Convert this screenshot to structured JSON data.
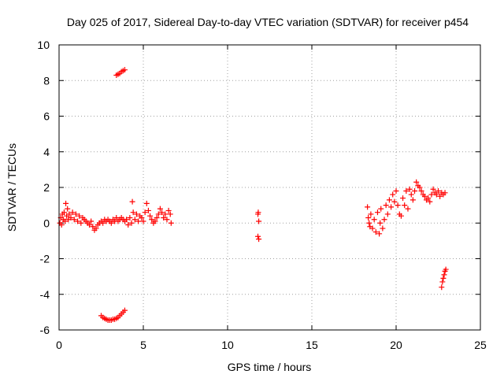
{
  "chart_data": {
    "type": "scatter",
    "title": "Day 025 of 2017, Sidereal Day-to-day VTEC variation (SDTVAR) for receiver p454",
    "xlabel": "GPS time / hours",
    "ylabel": "SDTVAR / TECUs",
    "xlim": [
      0,
      25
    ],
    "ylim": [
      -6,
      10
    ],
    "xticks": [
      0,
      5,
      10,
      15,
      20,
      25
    ],
    "xtick_labels": [
      "0",
      "5",
      "10",
      "15",
      "20",
      "25"
    ],
    "yticks": [
      -6,
      -4,
      -2,
      0,
      2,
      4,
      6,
      8,
      10
    ],
    "ytick_labels": [
      "-6",
      "-4",
      "-2",
      "0",
      "2",
      "4",
      "6",
      "8",
      "10"
    ],
    "grid": true,
    "marker": "plus",
    "marker_color": "#ff0000",
    "series": [
      {
        "name": "p454",
        "points": [
          [
            0.05,
            0.0
          ],
          [
            0.1,
            0.3
          ],
          [
            0.15,
            -0.1
          ],
          [
            0.2,
            0.5
          ],
          [
            0.25,
            0.2
          ],
          [
            0.3,
            0.6
          ],
          [
            0.35,
            0.1
          ],
          [
            0.4,
            1.1
          ],
          [
            0.45,
            0.4
          ],
          [
            0.5,
            0.8
          ],
          [
            0.55,
            0.2
          ],
          [
            0.6,
            0.5
          ],
          [
            0.7,
            0.3
          ],
          [
            0.8,
            0.6
          ],
          [
            0.9,
            0.2
          ],
          [
            1.0,
            0.5
          ],
          [
            1.1,
            0.1
          ],
          [
            1.2,
            0.4
          ],
          [
            1.3,
            0.0
          ],
          [
            1.4,
            0.3
          ],
          [
            1.5,
            0.2
          ],
          [
            1.6,
            0.1
          ],
          [
            1.7,
            0.0
          ],
          [
            1.8,
            -0.1
          ],
          [
            1.9,
            0.1
          ],
          [
            2.0,
            -0.2
          ],
          [
            2.1,
            -0.4
          ],
          [
            2.2,
            -0.3
          ],
          [
            2.3,
            -0.1
          ],
          [
            2.4,
            0.0
          ],
          [
            2.5,
            0.1
          ],
          [
            2.6,
            0.0
          ],
          [
            2.7,
            0.2
          ],
          [
            2.8,
            0.1
          ],
          [
            2.9,
            0.2
          ],
          [
            3.0,
            0.1
          ],
          [
            3.1,
            0.0
          ],
          [
            3.2,
            0.2
          ],
          [
            3.3,
            0.1
          ],
          [
            3.4,
            0.3
          ],
          [
            3.5,
            0.1
          ],
          [
            3.6,
            0.2
          ],
          [
            3.7,
            0.3
          ],
          [
            3.8,
            0.2
          ],
          [
            3.9,
            0.1
          ],
          [
            4.0,
            0.2
          ],
          [
            4.1,
            -0.1
          ],
          [
            4.2,
            0.3
          ],
          [
            4.3,
            0.0
          ],
          [
            4.35,
            1.2
          ],
          [
            4.4,
            0.6
          ],
          [
            4.5,
            0.2
          ],
          [
            4.6,
            0.5
          ],
          [
            4.7,
            0.1
          ],
          [
            4.8,
            0.4
          ],
          [
            4.9,
            0.3
          ],
          [
            5.0,
            0.1
          ],
          [
            5.1,
            0.6
          ],
          [
            5.2,
            1.1
          ],
          [
            5.3,
            0.7
          ],
          [
            5.4,
            0.4
          ],
          [
            5.5,
            0.2
          ],
          [
            5.6,
            0.0
          ],
          [
            5.7,
            0.1
          ],
          [
            5.8,
            0.3
          ],
          [
            5.9,
            0.5
          ],
          [
            6.0,
            0.8
          ],
          [
            6.1,
            0.6
          ],
          [
            6.2,
            0.3
          ],
          [
            6.3,
            0.5
          ],
          [
            6.4,
            0.2
          ],
          [
            6.5,
            0.7
          ],
          [
            6.6,
            0.5
          ],
          [
            6.65,
            0.0
          ],
          [
            3.4,
            8.3
          ],
          [
            3.5,
            8.35
          ],
          [
            3.6,
            8.4
          ],
          [
            3.7,
            8.5
          ],
          [
            3.8,
            8.55
          ],
          [
            3.9,
            8.6
          ],
          [
            2.5,
            -5.2
          ],
          [
            2.6,
            -5.3
          ],
          [
            2.7,
            -5.35
          ],
          [
            2.8,
            -5.4
          ],
          [
            2.9,
            -5.45
          ],
          [
            3.0,
            -5.45
          ],
          [
            3.1,
            -5.45
          ],
          [
            3.2,
            -5.4
          ],
          [
            3.3,
            -5.4
          ],
          [
            3.4,
            -5.35
          ],
          [
            3.5,
            -5.3
          ],
          [
            3.6,
            -5.2
          ],
          [
            3.7,
            -5.1
          ],
          [
            3.8,
            -5.0
          ],
          [
            3.9,
            -4.9
          ],
          [
            11.8,
            0.5
          ],
          [
            11.82,
            0.6
          ],
          [
            11.85,
            0.1
          ],
          [
            11.8,
            -0.75
          ],
          [
            11.85,
            -0.9
          ],
          [
            18.3,
            0.9
          ],
          [
            18.35,
            0.3
          ],
          [
            18.4,
            0.0
          ],
          [
            18.45,
            -0.2
          ],
          [
            18.5,
            0.5
          ],
          [
            18.6,
            -0.3
          ],
          [
            18.7,
            0.2
          ],
          [
            18.8,
            -0.5
          ],
          [
            18.9,
            0.6
          ],
          [
            19.0,
            -0.6
          ],
          [
            19.05,
            0.0
          ],
          [
            19.1,
            0.8
          ],
          [
            19.2,
            -0.3
          ],
          [
            19.3,
            0.2
          ],
          [
            19.4,
            1.0
          ],
          [
            19.5,
            0.5
          ],
          [
            19.6,
            1.3
          ],
          [
            19.7,
            0.9
          ],
          [
            19.8,
            1.6
          ],
          [
            19.9,
            1.2
          ],
          [
            20.0,
            1.8
          ],
          [
            20.1,
            1.0
          ],
          [
            20.2,
            0.5
          ],
          [
            20.3,
            0.4
          ],
          [
            20.4,
            1.4
          ],
          [
            20.5,
            1.0
          ],
          [
            20.6,
            1.8
          ],
          [
            20.7,
            0.8
          ],
          [
            20.8,
            1.9
          ],
          [
            20.9,
            1.6
          ],
          [
            21.0,
            1.3
          ],
          [
            21.1,
            1.8
          ],
          [
            21.2,
            2.3
          ],
          [
            21.3,
            2.1
          ],
          [
            21.4,
            2.0
          ],
          [
            21.5,
            1.8
          ],
          [
            21.6,
            1.6
          ],
          [
            21.7,
            1.5
          ],
          [
            21.8,
            1.3
          ],
          [
            21.9,
            1.4
          ],
          [
            22.0,
            1.2
          ],
          [
            22.1,
            1.6
          ],
          [
            22.2,
            1.9
          ],
          [
            22.3,
            1.7
          ],
          [
            22.4,
            1.6
          ],
          [
            22.5,
            1.8
          ],
          [
            22.6,
            1.5
          ],
          [
            22.7,
            1.7
          ],
          [
            22.8,
            1.6
          ],
          [
            22.9,
            1.7
          ],
          [
            22.7,
            -3.6
          ],
          [
            22.75,
            -3.3
          ],
          [
            22.8,
            -3.1
          ],
          [
            22.85,
            -2.9
          ],
          [
            22.9,
            -2.7
          ],
          [
            22.95,
            -2.6
          ]
        ]
      }
    ]
  }
}
